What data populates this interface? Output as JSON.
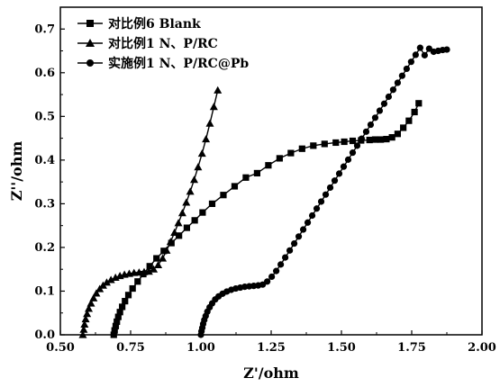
{
  "chart_data": {
    "type": "line",
    "xlabel": "Z'/ohm",
    "ylabel": "Z''/ohm",
    "xlim": [
      0.5,
      2.0
    ],
    "ylim": [
      0.0,
      0.75
    ],
    "xticks": [
      "0.50",
      "0.75",
      "1.00",
      "1.25",
      "1.50",
      "1.75",
      "2.00"
    ],
    "yticks": [
      "0.0",
      "0.1",
      "0.2",
      "0.3",
      "0.4",
      "0.5",
      "0.6",
      "0.7"
    ],
    "grid": false,
    "legend_position": "top-left",
    "series": [
      {
        "name": "对比例6 Blank",
        "marker": "square",
        "color": "#000000",
        "x": [
          0.69,
          0.693,
          0.697,
          0.701,
          0.706,
          0.712,
          0.72,
          0.73,
          0.742,
          0.757,
          0.775,
          0.795,
          0.818,
          0.842,
          0.868,
          0.895,
          0.922,
          0.95,
          0.978,
          1.006,
          1.04,
          1.08,
          1.12,
          1.16,
          1.2,
          1.24,
          1.28,
          1.32,
          1.36,
          1.4,
          1.44,
          1.48,
          1.51,
          1.54,
          1.57,
          1.6,
          1.62,
          1.64,
          1.66,
          1.68,
          1.7,
          1.72,
          1.74,
          1.76,
          1.775
        ],
        "y": [
          0.0,
          0.01,
          0.02,
          0.03,
          0.041,
          0.052,
          0.064,
          0.077,
          0.091,
          0.106,
          0.122,
          0.139,
          0.157,
          0.175,
          0.192,
          0.21,
          0.227,
          0.245,
          0.262,
          0.28,
          0.3,
          0.32,
          0.34,
          0.36,
          0.37,
          0.388,
          0.404,
          0.416,
          0.426,
          0.433,
          0.437,
          0.44,
          0.442,
          0.444,
          0.445,
          0.446,
          0.447,
          0.447,
          0.448,
          0.452,
          0.46,
          0.474,
          0.49,
          0.51,
          0.53
        ]
      },
      {
        "name": "对比例1 N、P/RC",
        "marker": "triangle",
        "color": "#000000",
        "x": [
          0.58,
          0.583,
          0.586,
          0.59,
          0.595,
          0.601,
          0.609,
          0.618,
          0.628,
          0.64,
          0.652,
          0.665,
          0.68,
          0.696,
          0.712,
          0.728,
          0.745,
          0.762,
          0.78,
          0.798,
          0.815,
          0.832,
          0.848,
          0.864,
          0.878,
          0.892,
          0.906,
          0.92,
          0.934,
          0.948,
          0.962,
          0.976,
          0.99,
          1.004,
          1.018,
          1.032,
          1.046,
          1.06
        ],
        "y": [
          0.0,
          0.012,
          0.024,
          0.036,
          0.048,
          0.06,
          0.072,
          0.084,
          0.095,
          0.105,
          0.113,
          0.12,
          0.126,
          0.131,
          0.135,
          0.138,
          0.14,
          0.142,
          0.143,
          0.144,
          0.145,
          0.15,
          0.16,
          0.175,
          0.193,
          0.213,
          0.234,
          0.256,
          0.279,
          0.303,
          0.328,
          0.355,
          0.384,
          0.415,
          0.448,
          0.484,
          0.522,
          0.56
        ]
      },
      {
        "name": "实施例1 N、P/RC@Pb",
        "marker": "circle",
        "color": "#000000",
        "x": [
          1.0,
          1.002,
          1.005,
          1.008,
          1.012,
          1.017,
          1.023,
          1.031,
          1.04,
          1.051,
          1.063,
          1.077,
          1.092,
          1.108,
          1.124,
          1.14,
          1.156,
          1.172,
          1.188,
          1.204,
          1.22,
          1.236,
          1.252,
          1.268,
          1.284,
          1.3,
          1.316,
          1.332,
          1.348,
          1.364,
          1.38,
          1.396,
          1.412,
          1.428,
          1.444,
          1.46,
          1.476,
          1.492,
          1.508,
          1.524,
          1.54,
          1.556,
          1.572,
          1.588,
          1.604,
          1.62,
          1.636,
          1.652,
          1.668,
          1.684,
          1.7,
          1.716,
          1.732,
          1.748,
          1.764,
          1.78,
          1.796,
          1.812,
          1.828,
          1.844,
          1.86,
          1.875
        ],
        "y": [
          0.0,
          0.008,
          0.016,
          0.025,
          0.034,
          0.043,
          0.053,
          0.063,
          0.072,
          0.081,
          0.088,
          0.094,
          0.099,
          0.103,
          0.106,
          0.108,
          0.11,
          0.111,
          0.112,
          0.113,
          0.115,
          0.122,
          0.133,
          0.146,
          0.161,
          0.177,
          0.193,
          0.209,
          0.225,
          0.241,
          0.257,
          0.273,
          0.289,
          0.305,
          0.321,
          0.337,
          0.353,
          0.369,
          0.385,
          0.401,
          0.417,
          0.433,
          0.449,
          0.465,
          0.481,
          0.497,
          0.513,
          0.529,
          0.545,
          0.561,
          0.577,
          0.593,
          0.609,
          0.625,
          0.641,
          0.657,
          0.64,
          0.655,
          0.648,
          0.65,
          0.652,
          0.653
        ]
      }
    ]
  }
}
